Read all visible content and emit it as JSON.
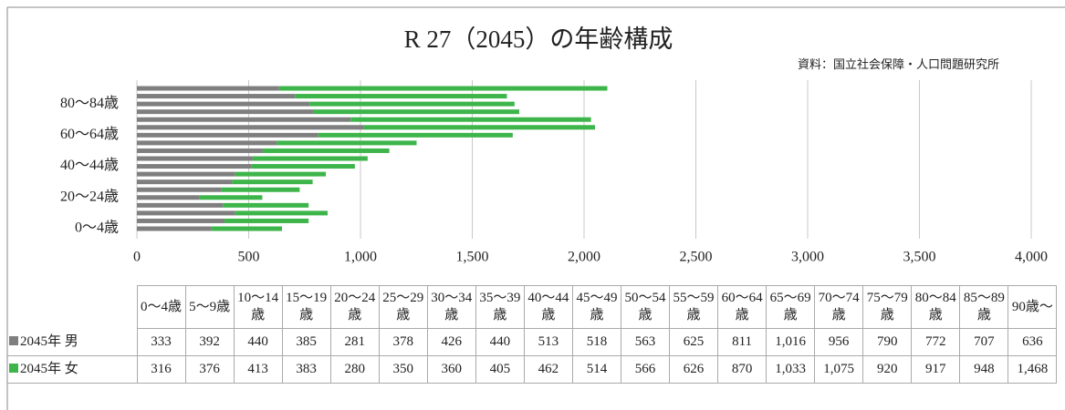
{
  "chart_data": {
    "type": "bar",
    "orientation": "horizontal",
    "stacked": true,
    "title": "R 27（2045）の年齢構成",
    "source": "資料：国立社会保障・人口問題研究所",
    "categories": [
      "0〜4歳",
      "5〜9歳",
      "10〜14歳",
      "15〜19歳",
      "20〜24歳",
      "25〜29歳",
      "30〜34歳",
      "35〜39歳",
      "40〜44歳",
      "45〜49歳",
      "50〜54歳",
      "55〜59歳",
      "60〜64歳",
      "65〜69歳",
      "70〜74歳",
      "75〜79歳",
      "80〜84歳",
      "85〜89歳",
      "90歳〜"
    ],
    "axis_label_categories": [
      0,
      4,
      8,
      12,
      16
    ],
    "series": [
      {
        "name": "2045年 男",
        "color": "#7f7f7f",
        "values": [
          333,
          392,
          440,
          385,
          281,
          378,
          426,
          440,
          513,
          518,
          563,
          625,
          811,
          1016,
          956,
          790,
          772,
          707,
          636
        ],
        "value_labels": [
          "333",
          "392",
          "440",
          "385",
          "281",
          "378",
          "426",
          "440",
          "513",
          "518",
          "563",
          "625",
          "811",
          "1,016",
          "956",
          "790",
          "772",
          "707",
          "636"
        ]
      },
      {
        "name": "2045年 女",
        "color": "#3db54a",
        "values": [
          316,
          376,
          413,
          383,
          280,
          350,
          360,
          405,
          462,
          514,
          566,
          626,
          870,
          1033,
          1075,
          920,
          917,
          948,
          1468
        ],
        "value_labels": [
          "316",
          "376",
          "413",
          "383",
          "280",
          "350",
          "360",
          "405",
          "462",
          "514",
          "566",
          "626",
          "870",
          "1,033",
          "1,075",
          "920",
          "917",
          "948",
          "1,468"
        ]
      }
    ],
    "xlim": [
      0,
      4000
    ],
    "xticks": [
      0,
      500,
      {
        "value": 1000,
        "label": "1,000"
      },
      {
        "value": 1500,
        "label": "1,500"
      },
      {
        "value": 2000,
        "label": "2,000"
      },
      {
        "value": 2500,
        "label": "2,500"
      },
      {
        "value": 3000,
        "label": "3,000"
      },
      {
        "value": 3500,
        "label": "3,500"
      },
      {
        "value": 4000,
        "label": "4,000"
      }
    ],
    "grid": true,
    "data_table": true
  }
}
